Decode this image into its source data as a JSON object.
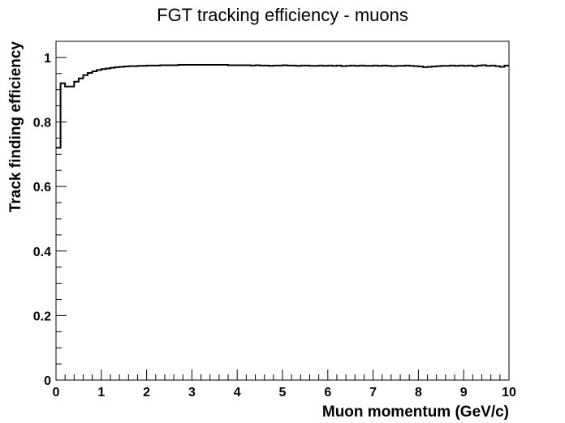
{
  "chart_data": {
    "type": "line",
    "style": "histogram-step",
    "title": "FGT tracking efficiency - muons",
    "xlabel": "Muon momentum (GeV/c)",
    "ylabel": "Track finding efficiency",
    "xlim": [
      0,
      10
    ],
    "ylim": [
      0,
      1.05
    ],
    "grid": false,
    "legend": "none",
    "x_ticks": [
      0,
      1,
      2,
      3,
      4,
      5,
      6,
      7,
      8,
      9,
      10
    ],
    "x_tick_labels": [
      "0",
      "1",
      "2",
      "3",
      "4",
      "5",
      "6",
      "7",
      "8",
      "9",
      "10"
    ],
    "y_ticks": [
      0,
      0.2,
      0.4,
      0.6,
      0.8,
      1
    ],
    "y_tick_labels": [
      "0",
      "0.2",
      "0.4",
      "0.6",
      "0.8",
      "1"
    ],
    "bin_width": 0.1,
    "bin_low_edges": [
      0.0,
      0.1,
      0.2,
      0.3,
      0.4,
      0.5,
      0.6,
      0.7,
      0.8,
      0.9,
      1.0,
      1.1,
      1.2,
      1.3,
      1.4,
      1.5,
      1.6,
      1.7,
      1.8,
      1.9,
      2.0,
      2.1,
      2.2,
      2.3,
      2.4,
      2.5,
      2.6,
      2.7,
      2.8,
      2.9,
      3.0,
      3.1,
      3.2,
      3.3,
      3.4,
      3.5,
      3.6,
      3.7,
      3.8,
      3.9,
      4.0,
      4.1,
      4.2,
      4.3,
      4.4,
      4.5,
      4.6,
      4.7,
      4.8,
      4.9,
      5.0,
      5.1,
      5.2,
      5.3,
      5.4,
      5.5,
      5.6,
      5.7,
      5.8,
      5.9,
      6.0,
      6.1,
      6.2,
      6.3,
      6.4,
      6.5,
      6.6,
      6.7,
      6.8,
      6.9,
      7.0,
      7.1,
      7.2,
      7.3,
      7.4,
      7.5,
      7.6,
      7.7,
      7.8,
      7.9,
      8.0,
      8.1,
      8.2,
      8.3,
      8.4,
      8.5,
      8.6,
      8.7,
      8.8,
      8.9,
      9.0,
      9.1,
      9.2,
      9.3,
      9.4,
      9.5,
      9.6,
      9.7,
      9.8,
      9.9
    ],
    "series": [
      {
        "values": [
          0.72,
          0.92,
          0.91,
          0.91,
          0.925,
          0.935,
          0.945,
          0.952,
          0.957,
          0.961,
          0.964,
          0.966,
          0.968,
          0.97,
          0.971,
          0.972,
          0.973,
          0.973,
          0.974,
          0.974,
          0.975,
          0.975,
          0.975,
          0.976,
          0.976,
          0.976,
          0.976,
          0.977,
          0.977,
          0.977,
          0.977,
          0.977,
          0.977,
          0.977,
          0.977,
          0.977,
          0.977,
          0.977,
          0.976,
          0.976,
          0.976,
          0.976,
          0.976,
          0.975,
          0.976,
          0.975,
          0.975,
          0.974,
          0.975,
          0.975,
          0.976,
          0.975,
          0.975,
          0.974,
          0.975,
          0.975,
          0.974,
          0.974,
          0.975,
          0.974,
          0.975,
          0.974,
          0.975,
          0.973,
          0.974,
          0.975,
          0.974,
          0.975,
          0.974,
          0.974,
          0.975,
          0.974,
          0.975,
          0.974,
          0.973,
          0.974,
          0.974,
          0.975,
          0.974,
          0.973,
          0.972,
          0.97,
          0.971,
          0.972,
          0.973,
          0.974,
          0.974,
          0.975,
          0.974,
          0.975,
          0.974,
          0.975,
          0.973,
          0.975,
          0.976,
          0.974,
          0.975,
          0.973,
          0.971,
          0.975
        ],
        "color": "#000000"
      }
    ]
  }
}
